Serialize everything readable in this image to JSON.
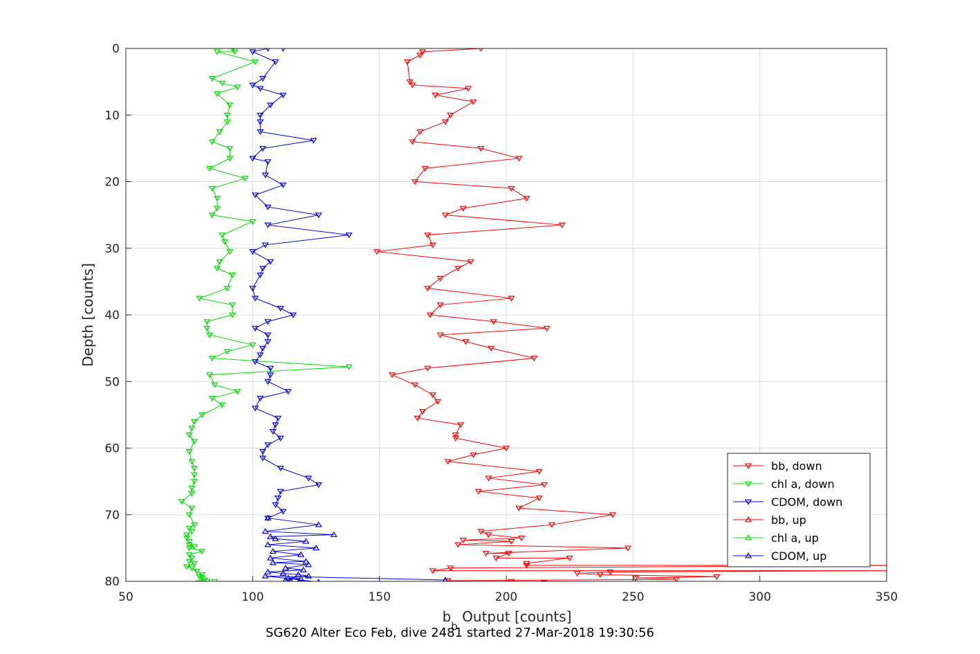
{
  "chart_data": {
    "type": "line",
    "title": "",
    "xlabel": "b_b Output [counts]",
    "xlabel_main": "b",
    "xlabel_sub": "b",
    "xlabel_rest": " Output [counts]",
    "ylabel": "Depth [counts]",
    "caption": "SG620 Alter Eco Feb, dive 2481 started 27-Mar-2018 19:30:56",
    "xlim": [
      50,
      350
    ],
    "ylim": [
      0,
      80
    ],
    "y_reversed": true,
    "xticks": [
      50,
      100,
      150,
      200,
      250,
      300,
      350
    ],
    "yticks": [
      0,
      10,
      20,
      30,
      40,
      50,
      60,
      70,
      80
    ],
    "grid": true,
    "legend_position": "bottom-right",
    "series": [
      {
        "name": "bb, down",
        "color": "#ff0000",
        "marker": "triangle-down",
        "x": [
          190,
          167,
          166,
          161,
          162,
          163,
          185,
          172,
          187,
          178,
          176,
          166,
          163,
          190,
          205,
          168,
          164,
          202,
          208,
          183,
          176,
          222,
          169,
          171,
          149,
          186,
          181,
          174,
          169,
          202,
          174,
          170,
          195,
          216,
          174,
          184,
          194,
          211,
          169,
          155,
          164,
          171,
          173,
          167,
          165,
          182,
          180,
          180,
          200,
          187,
          177,
          213,
          193,
          215,
          189,
          213,
          205,
          242,
          218,
          190,
          193,
          206,
          183,
          202,
          181,
          248,
          192,
          201,
          196,
          225,
          208,
          208,
          360,
          178,
          171,
          360,
          241,
          228,
          237,
          283,
          251,
          267,
          177,
          202,
          215
        ],
        "y": [
          0,
          0.5,
          1,
          2,
          5,
          5.5,
          6,
          7,
          8,
          10,
          11,
          12.5,
          14,
          15,
          16.5,
          18,
          20,
          21,
          22.5,
          24,
          25,
          26.5,
          28,
          29.5,
          30.5,
          32,
          33,
          34.5,
          36,
          37.5,
          38.5,
          40,
          41,
          42,
          43,
          44,
          45,
          46.5,
          48,
          49,
          50.5,
          52,
          53,
          54.5,
          55.5,
          56.5,
          58,
          58.5,
          60,
          61,
          62,
          63.5,
          64.5,
          65.5,
          66.5,
          67.5,
          69,
          70,
          71.5,
          72.5,
          73,
          73.5,
          73.8,
          74,
          74.5,
          75,
          75.8,
          75.8,
          76.5,
          76.5,
          77.3,
          77.6,
          77.6,
          78,
          78.4,
          78.4,
          78.6,
          78.8,
          79,
          79.3,
          79.5,
          79.7,
          79.9,
          80,
          80.2
        ]
      },
      {
        "name": "chl a, down",
        "color": "#00dd00",
        "marker": "triangle-down",
        "x": [
          92,
          93,
          86,
          101,
          84,
          88,
          94,
          86,
          91,
          90,
          90,
          87,
          84,
          91,
          91,
          83,
          97,
          84,
          86,
          86,
          84,
          100,
          88,
          89,
          91,
          87,
          86,
          92,
          90,
          79,
          92,
          92,
          82,
          82,
          83,
          100,
          90,
          84,
          138,
          83,
          85,
          94,
          84,
          88,
          80,
          77,
          76,
          75,
          77,
          75,
          76,
          77,
          77,
          77,
          76,
          76,
          72,
          76,
          75,
          77,
          75,
          76,
          74,
          74,
          75,
          75,
          77,
          75,
          80,
          75,
          76,
          75,
          77,
          74,
          76,
          78,
          80,
          79,
          80,
          81,
          82,
          85,
          79,
          80
        ],
        "y": [
          0,
          0.5,
          0.5,
          2,
          4.5,
          5.2,
          5.8,
          6.8,
          8.5,
          10,
          11,
          12.5,
          14,
          15,
          16.5,
          18,
          19.5,
          21,
          22.5,
          24,
          25,
          26,
          28,
          29,
          30.5,
          32,
          33,
          34,
          36,
          37.5,
          38.5,
          40,
          41,
          42,
          43,
          44.5,
          45.5,
          46.5,
          47.8,
          49,
          50.5,
          51.5,
          52.5,
          53.5,
          55,
          56,
          57,
          58,
          59,
          60.5,
          62,
          63,
          64,
          65,
          66,
          66.8,
          68,
          69,
          70,
          71.5,
          72,
          72.5,
          73,
          73.5,
          74,
          74.5,
          74.8,
          75,
          75.5,
          76,
          76.5,
          77,
          77.3,
          77.8,
          78,
          78.5,
          79,
          79.3,
          79.5,
          79.8,
          80,
          80,
          80.2,
          80.3
        ]
      },
      {
        "name": "CDOM, down",
        "color": "#0000dd",
        "marker": "triangle-down",
        "x": [
          112,
          106,
          100,
          109,
          104,
          100,
          103,
          112,
          107,
          103,
          103,
          103,
          124,
          104,
          100,
          106,
          105,
          112,
          101,
          106,
          126,
          106,
          138,
          105,
          100,
          107,
          104,
          103,
          100,
          101,
          111,
          116,
          106,
          101,
          106,
          106,
          104,
          103,
          101,
          107,
          107,
          106,
          114,
          103,
          101,
          110,
          109,
          108,
          111,
          106,
          104,
          104,
          111,
          122,
          126,
          111,
          110,
          109,
          112,
          106
        ],
        "y": [
          0,
          0,
          0.5,
          2,
          4.5,
          5.5,
          6,
          7,
          8.5,
          10,
          11,
          12.5,
          13.8,
          15,
          16.5,
          17,
          19,
          20.5,
          22,
          23.8,
          25,
          26.5,
          28,
          29.5,
          30.5,
          32,
          33,
          34,
          36,
          37.5,
          39,
          40,
          41,
          42,
          43,
          44,
          45,
          46,
          47,
          48,
          49,
          50,
          51.5,
          52.5,
          54,
          55.5,
          56.5,
          57.5,
          58.5,
          59.5,
          60.5,
          61.5,
          63,
          64.5,
          65.5,
          66.5,
          67.5,
          68.5,
          69.5,
          70.5
        ]
      },
      {
        "name": "bb, up",
        "color": "#ff0000",
        "marker": "triangle-up",
        "x": [],
        "y": []
      },
      {
        "name": "chl a, up",
        "color": "#00dd00",
        "marker": "triangle-up",
        "x": [],
        "y": []
      },
      {
        "name": "CDOM, up",
        "color": "#0000dd",
        "marker": "triangle-up",
        "x": [
          106,
          126,
          105,
          132,
          107,
          109,
          121,
          106,
          125,
          108,
          119,
          107,
          121,
          108,
          122,
          113,
          120,
          106,
          112,
          118,
          122,
          114,
          119,
          113,
          115,
          126,
          105,
          176
        ],
        "y": [
          70.5,
          71.5,
          72.5,
          73,
          73.3,
          73.6,
          74,
          74.5,
          75,
          75.5,
          76,
          76.5,
          77,
          77.2,
          77.5,
          78,
          78.3,
          78.6,
          78.8,
          79,
          79.2,
          79.5,
          79.6,
          79.8,
          80,
          80.1,
          79.2,
          79.8
        ]
      }
    ]
  },
  "legend": [
    {
      "label": "bb, down",
      "color": "#ff0000",
      "marker": "triangle-down"
    },
    {
      "label": "chl a, down",
      "color": "#00dd00",
      "marker": "triangle-down"
    },
    {
      "label": "CDOM, down",
      "color": "#0000dd",
      "marker": "triangle-down"
    },
    {
      "label": "bb, up",
      "color": "#ff0000",
      "marker": "triangle-up"
    },
    {
      "label": "chl a, up",
      "color": "#00dd00",
      "marker": "triangle-up"
    },
    {
      "label": "CDOM, up",
      "color": "#0000dd",
      "marker": "triangle-up"
    }
  ]
}
